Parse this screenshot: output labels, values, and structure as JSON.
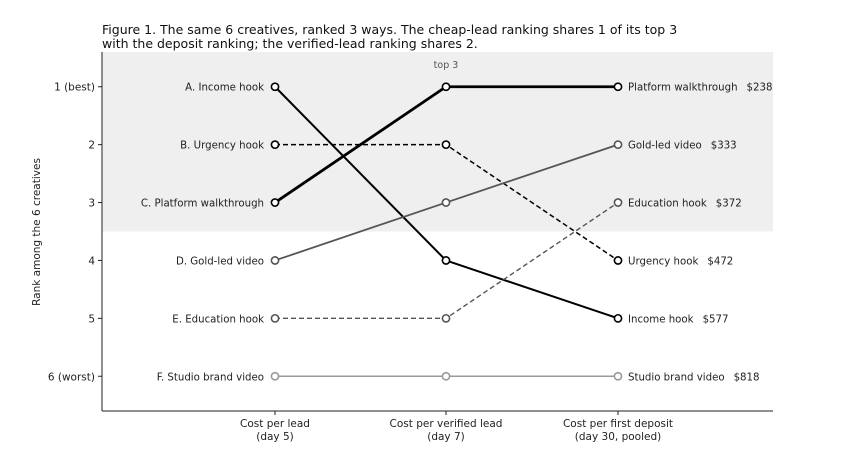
{
  "chart_data": {
    "type": "line",
    "title_lines": [
      "Figure 1. The same 6 creatives, ranked 3 ways. The cheap-lead ranking shares 1 of its top 3",
      "with the deposit ranking; the verified-lead ranking shares 2."
    ],
    "ylabel": "Rank among the 6 creatives",
    "y_ticks": [
      {
        "rank": 1,
        "label": "1 (best)"
      },
      {
        "rank": 2,
        "label": "2"
      },
      {
        "rank": 3,
        "label": "3"
      },
      {
        "rank": 4,
        "label": "4"
      },
      {
        "rank": 5,
        "label": "5"
      },
      {
        "rank": 6,
        "label": "6 (worst)"
      }
    ],
    "ylim": [
      0.4,
      6.6
    ],
    "categories": [
      {
        "line1": "Cost per lead",
        "line2": "(day 5)"
      },
      {
        "line1": "Cost per verified lead",
        "line2": "(day 7)"
      },
      {
        "line1": "Cost per first deposit",
        "line2": "(day 30, pooled)"
      }
    ],
    "band": {
      "label": "top 3",
      "ranks": [
        1,
        3
      ],
      "color": "#efefef"
    },
    "series": [
      {
        "name": "A. Income hook",
        "ranks": [
          1,
          4,
          5
        ],
        "color": "#000000",
        "dash": "solid",
        "width": 2.0,
        "right_label": "Income hook",
        "cost": "$577"
      },
      {
        "name": "B. Urgency hook",
        "ranks": [
          2,
          2,
          4
        ],
        "color": "#000000",
        "dash": "dashed",
        "width": 1.5,
        "right_label": "Urgency hook",
        "cost": "$472"
      },
      {
        "name": "C. Platform walkthrough",
        "ranks": [
          3,
          1,
          1
        ],
        "color": "#000000",
        "dash": "solid",
        "width": 2.8,
        "right_label": "Platform walkthrough",
        "cost": "$238"
      },
      {
        "name": "D. Gold-led video",
        "ranks": [
          4,
          3,
          2
        ],
        "color": "#555555",
        "dash": "solid",
        "width": 1.8,
        "right_label": "Gold-led video",
        "cost": "$333"
      },
      {
        "name": "E. Education hook",
        "ranks": [
          5,
          5,
          3
        ],
        "color": "#555555",
        "dash": "dashed",
        "width": 1.4,
        "right_label": "Education hook",
        "cost": "$372"
      },
      {
        "name": "F. Studio brand video",
        "ranks": [
          6,
          6,
          6
        ],
        "color": "#999999",
        "dash": "solid",
        "width": 1.4,
        "right_label": "Studio brand video",
        "cost": "$818"
      }
    ]
  }
}
